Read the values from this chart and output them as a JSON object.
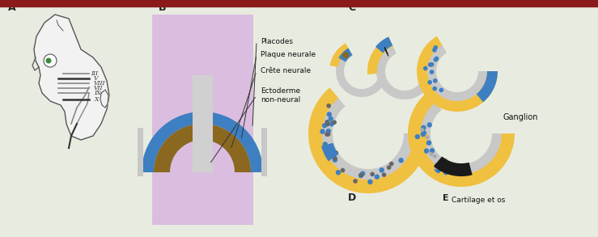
{
  "bg_color": "#e8ece0",
  "title_bar_color": "#8b1a1a",
  "panel_B_bg": "#dbbde0",
  "color_blue": "#3d7fc1",
  "color_brown": "#8a6820",
  "color_gray_light": "#c8c8c8",
  "color_gray_tube": "#d0d0d0",
  "color_yellow": "#f0c040",
  "color_dark_dots": "#666666",
  "color_black_cart": "#1a1a1a",
  "head_fill": "#f2f2f2",
  "head_line": "#555555",
  "nerve_dark": "#333333",
  "nerve_gray": "#888888",
  "label_color": "#222222",
  "annotation_color": "#111111",
  "annotations": [
    "Placodes",
    "Plaque neurale",
    "Crête neurale",
    "Ectoderme\nnon-neural"
  ],
  "nerve_labels": [
    "III",
    "V",
    "VIII",
    "VII",
    "IX",
    "X"
  ],
  "text_ganglion": "Ganglion",
  "text_cartilage": "Cartilage et os"
}
